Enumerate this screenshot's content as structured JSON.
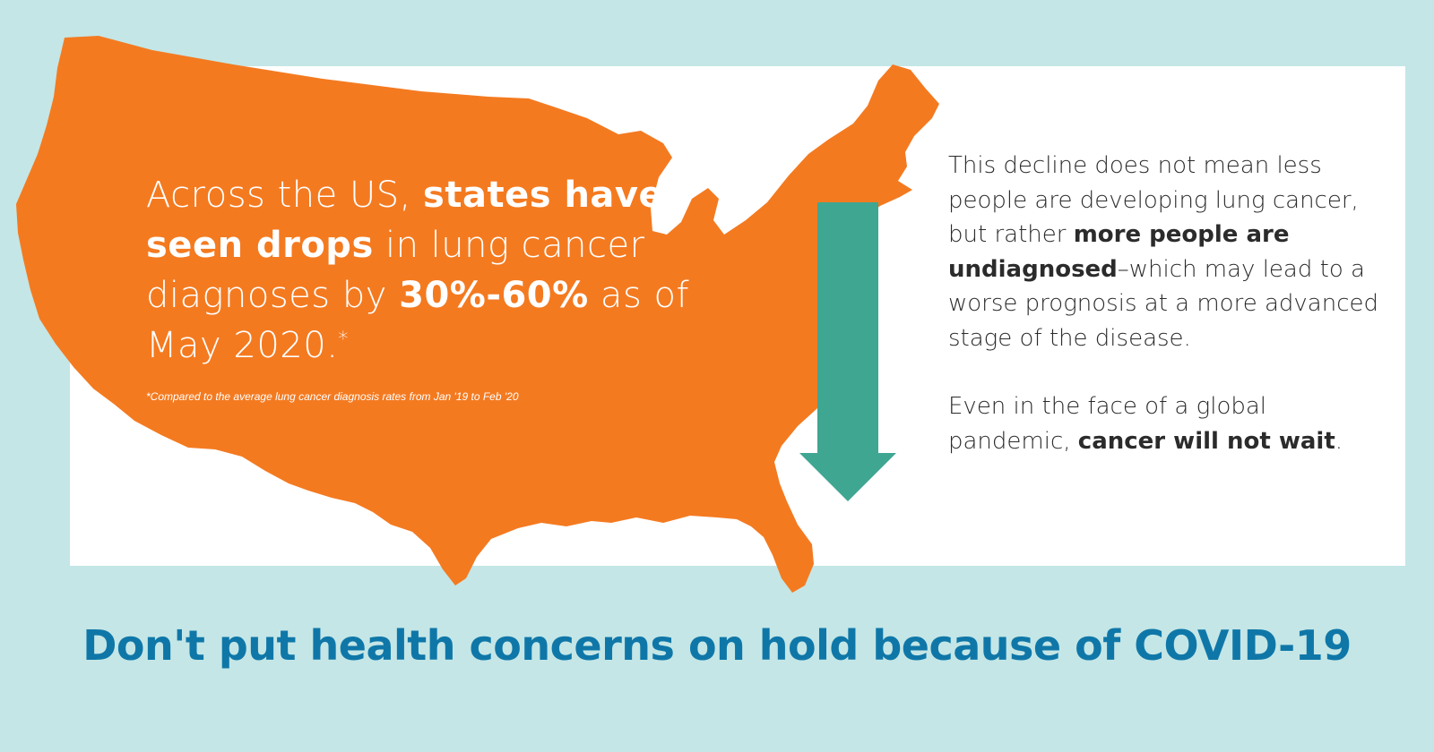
{
  "headline": {
    "part1": "Across the US, ",
    "bold1": "states have seen drops",
    "part2": " in lung cancer diagnoses by ",
    "bold2": "30%-60%",
    "part3": " as of May 2020.",
    "asterisk": "*"
  },
  "footnote": "*Compared to the average lung cancer diagnosis rates from Jan '19 to Feb '20",
  "body": {
    "p1_a": "This decline does not mean less people are developing lung cancer, but rather ",
    "p1_bold": "more people are undiagnosed",
    "p1_b": "–which may lead to a worse prognosis at a more advanced stage of the disease.",
    "p2_a": "Even in the face of a global pandemic, ",
    "p2_bold": "cancer will not wait",
    "p2_b": "."
  },
  "tagline": "Don't put health concerns on hold because of COVID-19",
  "colors": {
    "background": "#c4e6e6",
    "map": "#f47a20",
    "arrow": "#3fa692",
    "tagline": "#0f77a8",
    "body_text": "#2b2b2b"
  },
  "icons": {
    "map": "us-map-icon",
    "arrow": "down-arrow-icon"
  }
}
